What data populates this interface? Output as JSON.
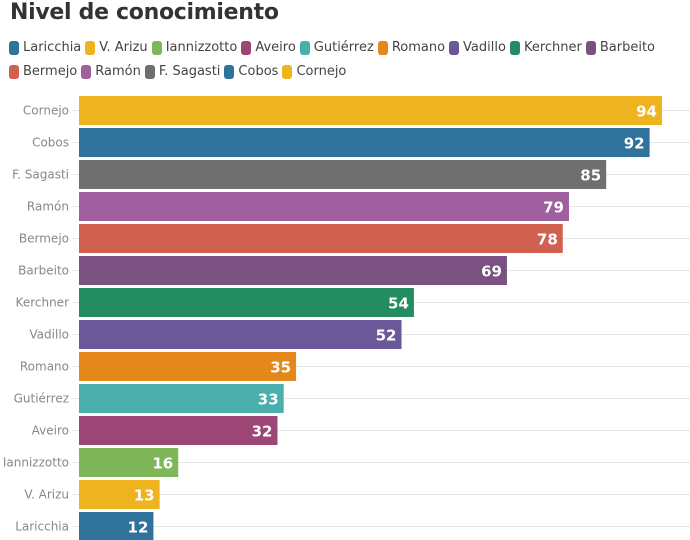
{
  "chart_data": {
    "type": "bar",
    "orientation": "horizontal",
    "title": "Nivel de conocimiento",
    "xlabel": "",
    "ylabel": "",
    "xlim": [
      0,
      100
    ],
    "grid": true,
    "legend_position": "top",
    "categories": [
      "Cornejo",
      "Cobos",
      "F. Sagasti",
      "Ramón",
      "Bermejo",
      "Barbeito",
      "Kerchner",
      "Vadillo",
      "Romano",
      "Gutiérrez",
      "Aveiro",
      "Iannizzotto",
      "V. Arizu",
      "Laricchia"
    ],
    "values": [
      94,
      92,
      85,
      79,
      78,
      69,
      54,
      52,
      35,
      33,
      32,
      16,
      13,
      12
    ],
    "colors": [
      "#eeb31f",
      "#2f739b",
      "#6f6f6f",
      "#a060a0",
      "#d06050",
      "#7a5180",
      "#238c60",
      "#6a5899",
      "#e4881c",
      "#4aaeac",
      "#9b4674",
      "#80b65a",
      "#eeb31f",
      "#2f739b"
    ],
    "legend": [
      {
        "label": "Laricchia",
        "color": "#2f739b"
      },
      {
        "label": "V. Arizu",
        "color": "#eeb31f"
      },
      {
        "label": "Iannizzotto",
        "color": "#80b65a"
      },
      {
        "label": "Aveiro",
        "color": "#9b4674"
      },
      {
        "label": "Gutiérrez",
        "color": "#4aaeac"
      },
      {
        "label": "Romano",
        "color": "#e4881c"
      },
      {
        "label": "Vadillo",
        "color": "#6a5899"
      },
      {
        "label": "Kerchner",
        "color": "#238c60"
      },
      {
        "label": "Barbeito",
        "color": "#7a5180"
      },
      {
        "label": "Bermejo",
        "color": "#d06050"
      },
      {
        "label": "Ramón",
        "color": "#a060a0"
      },
      {
        "label": "F. Sagasti",
        "color": "#6f6f6f"
      },
      {
        "label": "Cobos",
        "color": "#2f739b"
      },
      {
        "label": "Cornejo",
        "color": "#eeb31f"
      }
    ]
  }
}
